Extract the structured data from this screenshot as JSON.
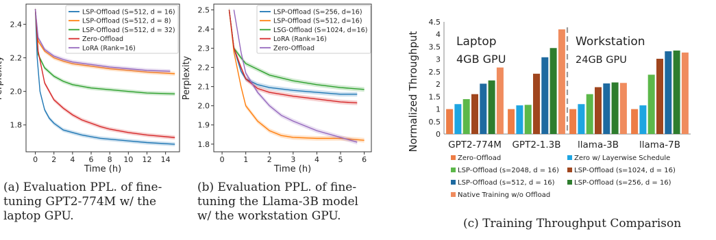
{
  "captions": {
    "a": "(a) Evaluation PPL. of fine-\ntuning GPT2-774M w/ the\nlaptop GPU.",
    "b": "(b) Evaluation PPL. of fine-\ntuning the Llama-3B model\nw/ the workstation GPU.",
    "c": "(c) Training Throughput Comparison"
  },
  "chart_data": [
    {
      "type": "line",
      "xlabel": "Time (h)",
      "ylabel": "Perplexity",
      "xlim": [
        -1,
        15.5
      ],
      "ylim": [
        1.64,
        2.52
      ],
      "xticks": [
        0,
        2,
        4,
        6,
        8,
        10,
        12,
        14
      ],
      "yticks": [
        1.8,
        2.0,
        2.2,
        2.4
      ],
      "legend_position": "top-right",
      "series": [
        {
          "name": "LSP-Offload (S=512, d = 16)",
          "color": "#1f77b4",
          "x": [
            0,
            0.2,
            0.5,
            1,
            1.5,
            2,
            3,
            4,
            5,
            6,
            7,
            8,
            10,
            12,
            15
          ],
          "y": [
            2.49,
            2.2,
            2.0,
            1.89,
            1.84,
            1.81,
            1.77,
            1.755,
            1.74,
            1.73,
            1.72,
            1.715,
            1.705,
            1.695,
            1.685
          ]
        },
        {
          "name": "LSP-Offload (S=512, d = 8)",
          "color": "#ff7f0e",
          "x": [
            0,
            0.3,
            1,
            2,
            3,
            4,
            6,
            8,
            10,
            12,
            15
          ],
          "y": [
            2.49,
            2.3,
            2.24,
            2.2,
            2.18,
            2.165,
            2.15,
            2.135,
            2.125,
            2.115,
            2.105
          ]
        },
        {
          "name": "LSP-Offload (S=512, d = 32)",
          "color": "#2ca02c",
          "x": [
            0,
            0.3,
            1,
            2,
            3,
            4,
            6,
            8,
            10,
            12,
            15
          ],
          "y": [
            2.49,
            2.22,
            2.14,
            2.09,
            2.06,
            2.04,
            2.02,
            2.01,
            2.0,
            1.99,
            1.985
          ]
        },
        {
          "name": "Zero-Offload",
          "color": "#d62728",
          "x": [
            0,
            0.3,
            1,
            2,
            3,
            4,
            5,
            6,
            7,
            8,
            10,
            12,
            15
          ],
          "y": [
            2.49,
            2.24,
            2.05,
            1.95,
            1.9,
            1.86,
            1.83,
            1.81,
            1.79,
            1.775,
            1.755,
            1.74,
            1.725
          ]
        },
        {
          "name": "LoRA (Rank=16)",
          "color": "#9467bd",
          "x": [
            0,
            0.3,
            1,
            2,
            3,
            4,
            6,
            8,
            10,
            12,
            14.5
          ],
          "y": [
            2.49,
            2.32,
            2.25,
            2.21,
            2.19,
            2.175,
            2.16,
            2.145,
            2.135,
            2.125,
            2.12
          ]
        }
      ]
    },
    {
      "type": "line",
      "xlabel": "Time (h)",
      "ylabel": "Perplexity",
      "xlim": [
        -0.35,
        6.3
      ],
      "ylim": [
        1.76,
        2.53
      ],
      "xticks": [
        0,
        1,
        2,
        3,
        4,
        5,
        6
      ],
      "yticks": [
        1.8,
        1.9,
        2.0,
        2.1,
        2.2,
        2.3,
        2.4,
        2.5
      ],
      "legend_position": "top-right",
      "series": [
        {
          "name": "LSP-Offload (S=256, d=16)",
          "color": "#1f77b4",
          "x": [
            0.3,
            0.5,
            0.8,
            1,
            1.5,
            2,
            3,
            4,
            5,
            5.7
          ],
          "y": [
            2.5,
            2.3,
            2.18,
            2.14,
            2.11,
            2.095,
            2.08,
            2.07,
            2.06,
            2.06
          ]
        },
        {
          "name": "LSP-Offload (S=512, d=16)",
          "color": "#ff7f0e",
          "x": [
            0.3,
            0.5,
            0.8,
            1,
            1.5,
            2,
            2.5,
            3,
            4,
            5,
            6
          ],
          "y": [
            2.5,
            2.28,
            2.1,
            2.0,
            1.92,
            1.87,
            1.845,
            1.835,
            1.83,
            1.83,
            1.82
          ]
        },
        {
          "name": "LSG-Offload (S=1024, d=16)",
          "color": "#2ca02c",
          "x": [
            0.3,
            0.5,
            0.8,
            1,
            1.5,
            2,
            3,
            4,
            5,
            6
          ],
          "y": [
            2.5,
            2.3,
            2.25,
            2.22,
            2.19,
            2.16,
            2.13,
            2.11,
            2.095,
            2.085
          ]
        },
        {
          "name": "LoRA (Rank=16)",
          "color": "#d62728",
          "x": [
            0.3,
            0.5,
            0.8,
            1,
            1.5,
            2,
            3,
            4,
            5,
            5.7
          ],
          "y": [
            2.5,
            2.3,
            2.2,
            2.14,
            2.09,
            2.07,
            2.05,
            2.035,
            2.02,
            2.015
          ]
        },
        {
          "name": "Zero-Offload",
          "color": "#9467bd",
          "x": [
            0.5,
            0.8,
            1,
            1.5,
            2,
            2.5,
            3,
            4,
            5,
            5.7
          ],
          "y": [
            2.5,
            2.28,
            2.17,
            2.07,
            2.0,
            1.95,
            1.92,
            1.87,
            1.835,
            1.81
          ]
        }
      ]
    },
    {
      "type": "bar",
      "ylabel": "Normalized Throughput",
      "ylim": [
        0,
        4.5
      ],
      "yticks": [
        0,
        0.5,
        1,
        1.5,
        2,
        2.5,
        3,
        3.5,
        4,
        4.5
      ],
      "categories": [
        "GPT2-774M",
        "GPT2-1.3B",
        "llama-3B",
        "llama-7B"
      ],
      "group_labels": [
        {
          "title": "Laptop",
          "subtitle": "4GB GPU"
        },
        {
          "title": "Workstation",
          "subtitle": "24GB GPU"
        }
      ],
      "legend_position": "bottom",
      "series": [
        {
          "name": "Zero-Offload",
          "color": "#ed7d46",
          "values": [
            1,
            1,
            1,
            1
          ]
        },
        {
          "name": "Zero w/ Layerwise Schedule",
          "color": "#1ea5e1",
          "values": [
            1.2,
            1.15,
            1.2,
            1.15
          ]
        },
        {
          "name": "LSP-Offload (s=2048, d = 16)",
          "color": "#5cb84a",
          "values": [
            1.4,
            1.17,
            1.6,
            2.38
          ]
        },
        {
          "name": "LSP-Offload (s=1024, d = 16)",
          "color": "#a0461e",
          "values": [
            1.6,
            2.42,
            1.88,
            3.02
          ]
        },
        {
          "name": "LSP-Offload (s=512, d = 16)",
          "color": "#1e6aa0",
          "values": [
            2.02,
            3.08,
            2.03,
            3.32
          ]
        },
        {
          "name": "LSP-Offload (s=256, d = 16)",
          "color": "#2e7d2e",
          "values": [
            2.15,
            3.45,
            2.07,
            3.35
          ]
        },
        {
          "name": "Native Training w/o Offload",
          "color": "#f08c5e",
          "values": [
            2.67,
            4.2,
            2.05,
            3.27
          ]
        }
      ]
    }
  ]
}
